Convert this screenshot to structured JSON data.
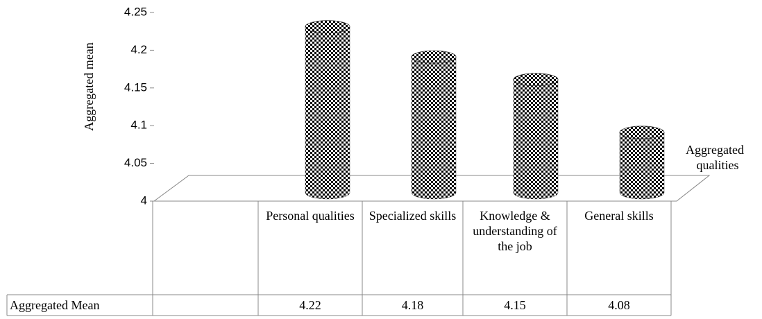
{
  "chart_data": {
    "type": "bar",
    "y_label": "Aggregated  mean",
    "categories": [
      "Personal qualities",
      "Specialized skills",
      "Knowledge & understanding of the job",
      "General skills"
    ],
    "series": [
      {
        "name": "Aggregated qualities",
        "color": "#000000",
        "values": [
          4.22,
          4.18,
          4.15,
          4.08
        ]
      }
    ],
    "table_row_label": "Aggregated Mean",
    "ylim": [
      4,
      4.25
    ],
    "yticks": [
      4,
      4.05,
      4.1,
      4.15,
      4.2,
      4.25
    ]
  }
}
